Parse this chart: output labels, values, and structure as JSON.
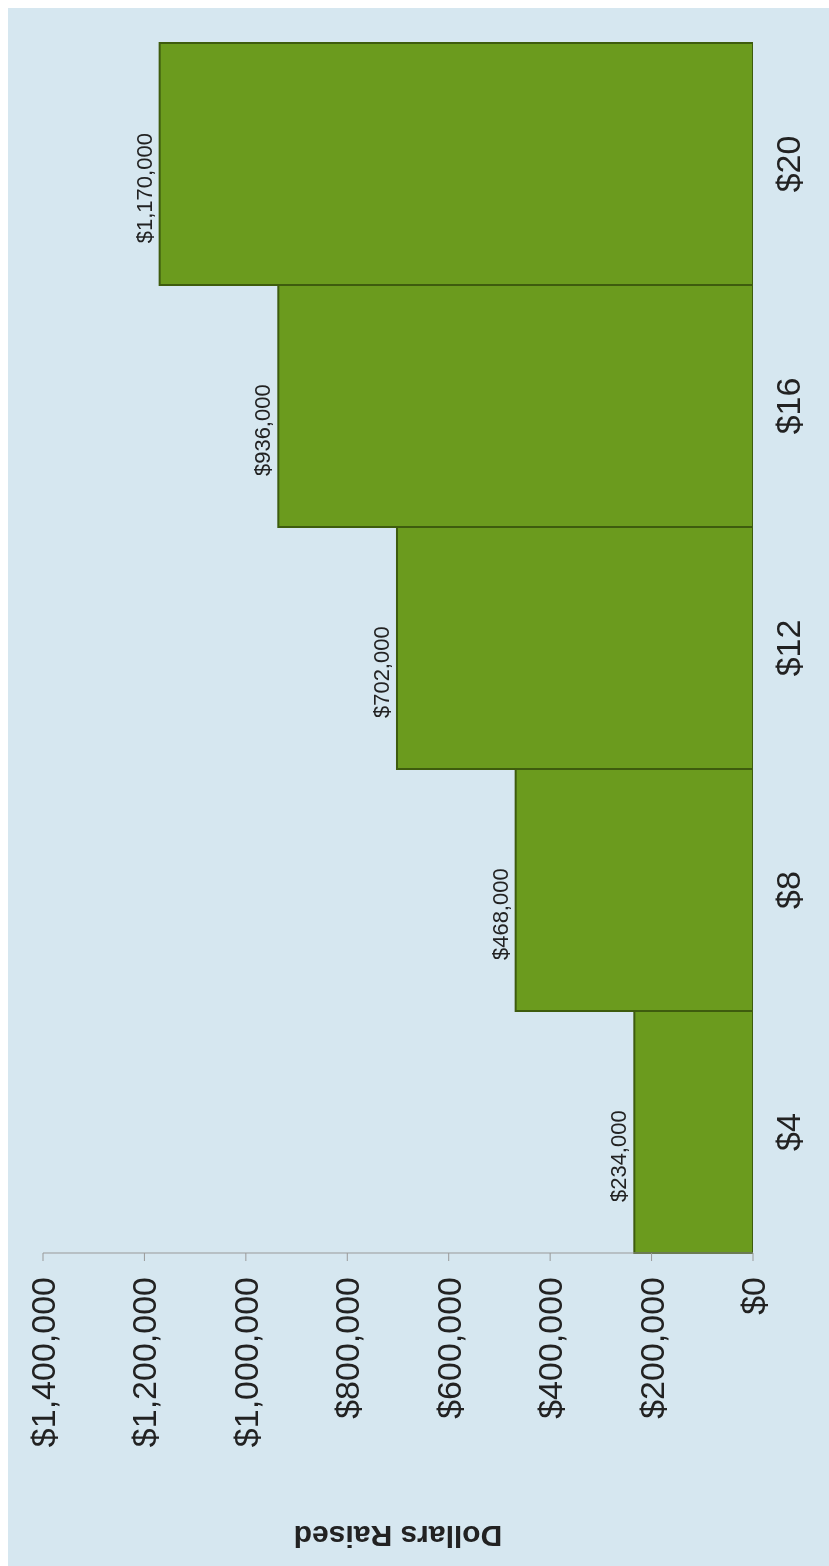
{
  "chart_data": {
    "type": "bar",
    "orientation": "horizontal",
    "xlabel": "Dollars Raised",
    "categories": [
      "$20",
      "$16",
      "$12",
      "$8",
      "$4"
    ],
    "values": [
      1170000,
      936000,
      702000,
      468000,
      234000
    ],
    "value_labels": [
      "$1,170,000",
      "$936,000",
      "$702,000",
      "$468,000",
      "$234,000"
    ],
    "color": "#6b9b1e",
    "xlim": [
      1400000,
      0
    ],
    "xticks": [
      {
        "value": 1400000,
        "label": "$1,400,000"
      },
      {
        "value": 1200000,
        "label": "$1,200,000"
      },
      {
        "value": 1000000,
        "label": "$1,000,000"
      },
      {
        "value": 800000,
        "label": "$800,000"
      },
      {
        "value": 600000,
        "label": "$600,000"
      },
      {
        "value": 400000,
        "label": "$400,000"
      },
      {
        "value": 200000,
        "label": "$200,000"
      },
      {
        "value": 0,
        "label": "$0"
      }
    ],
    "grid": false,
    "legend": false
  }
}
